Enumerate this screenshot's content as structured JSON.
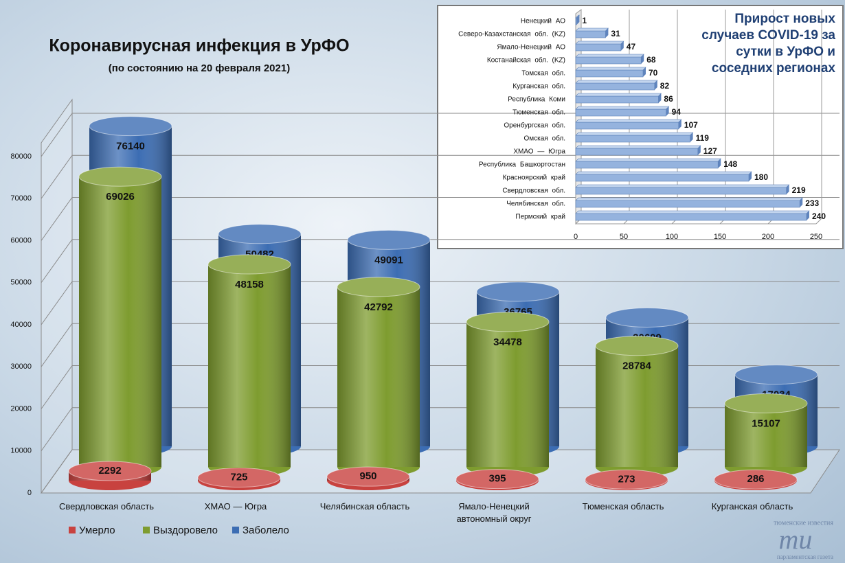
{
  "chart_data": [
    {
      "type": "cylinder",
      "title": "Коронавирусная инфекция в УрФО",
      "subtitle": "(по состоянию на 20 февраля 2021)",
      "categories": [
        "Свердловская область",
        "ХМАО — Югра",
        "Челябинская область",
        "Ямало-Ненецкий автономный округ",
        "Тюменская область",
        "Курганская область"
      ],
      "series": [
        {
          "name": "Умерло",
          "color": "#c8423f",
          "values": [
            2292,
            725,
            950,
            395,
            273,
            286
          ]
        },
        {
          "name": "Выздоровело",
          "color": "#7e9c2f",
          "values": [
            69026,
            48158,
            42792,
            34478,
            28784,
            15107
          ]
        },
        {
          "name": "Заболело",
          "color": "#3c6db3",
          "values": [
            76140,
            50482,
            49091,
            36765,
            30609,
            17034
          ]
        }
      ],
      "ylim": [
        0,
        80000
      ],
      "yticks": [
        0,
        10000,
        20000,
        30000,
        40000,
        50000,
        60000,
        70000,
        80000
      ],
      "grid": true,
      "legend": "bottom-left"
    },
    {
      "type": "hbar",
      "title": "Прирост новых случаев COVID-19 за сутки в УрФО и соседних регионах",
      "categories": [
        "Ненецкий АО",
        "Северо-Казахстанская обл. (KZ)",
        "Ямало-Ненецкий АО",
        "Костанайская обл. (KZ)",
        "Томская обл.",
        "Курганская обл.",
        "Республика Коми",
        "Тюменская обл.",
        "Оренбургская обл.",
        "Омская обл.",
        "ХМАО — Югра",
        "Республика Башкортостан",
        "Красноярский край",
        "Свердловская обл.",
        "Челябинская обл.",
        "Пермский край"
      ],
      "values": [
        1,
        31,
        47,
        68,
        70,
        82,
        86,
        94,
        107,
        119,
        127,
        148,
        180,
        219,
        233,
        240
      ],
      "color": "#95b3de",
      "xlim": [
        0,
        250
      ],
      "xticks": [
        0,
        50,
        100,
        150,
        200,
        250
      ],
      "grid": true
    }
  ],
  "logo": {
    "top": "тюменские известия",
    "mark": "ти",
    "bottom": "парламентская газета"
  }
}
